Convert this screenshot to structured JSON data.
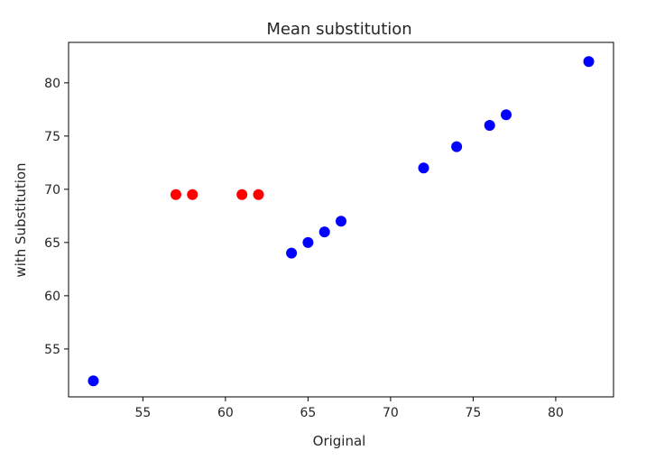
{
  "chart_data": {
    "type": "scatter",
    "title": "Mean substitution",
    "xlabel": "Original",
    "ylabel": "with Substitution",
    "xlim": [
      50.5,
      83.5
    ],
    "ylim": [
      50.5,
      83.8
    ],
    "xticks": [
      55,
      60,
      65,
      70,
      75,
      80
    ],
    "yticks": [
      55,
      60,
      65,
      70,
      75,
      80
    ],
    "grid": false,
    "series": [
      {
        "color": "#0000ff",
        "points": [
          {
            "x": 52,
            "y": 52
          },
          {
            "x": 64,
            "y": 64
          },
          {
            "x": 65,
            "y": 65
          },
          {
            "x": 66,
            "y": 66
          },
          {
            "x": 67,
            "y": 67
          },
          {
            "x": 72,
            "y": 72
          },
          {
            "x": 74,
            "y": 74
          },
          {
            "x": 76,
            "y": 76
          },
          {
            "x": 77,
            "y": 77
          },
          {
            "x": 82,
            "y": 82
          }
        ]
      },
      {
        "color": "#ff0000",
        "points": [
          {
            "x": 57,
            "y": 69.5
          },
          {
            "x": 58,
            "y": 69.5
          },
          {
            "x": 61,
            "y": 69.5
          },
          {
            "x": 62,
            "y": 69.5
          }
        ]
      }
    ]
  }
}
